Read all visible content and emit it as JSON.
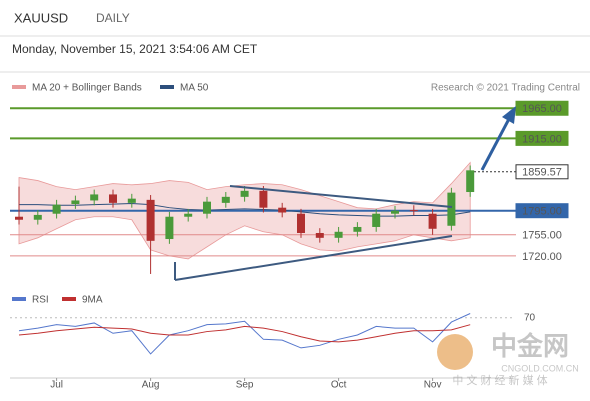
{
  "header": {
    "symbol": "XAUUSD",
    "timeframe": "DAILY",
    "timestamp": "Monday, November 15, 2021 3:54:06 AM CET"
  },
  "watermark": {
    "brand": "中金网",
    "tagline": "中 文 财 经 新 媒 体",
    "site": "CNGOLD.COM.CN"
  },
  "chart_data": [
    {
      "type": "candlestick",
      "credit": "Research © 2021 Trading Central",
      "up_color": "#4a9a3a",
      "down_color": "#b03030",
      "open": [
        1785,
        1780,
        1790,
        1806,
        1812,
        1822,
        1808,
        1813,
        1748,
        1785,
        1790,
        1808,
        1818,
        1828,
        1800,
        1790,
        1758,
        1750,
        1760,
        1768,
        1790,
        1796,
        1790,
        1770,
        1826
      ],
      "high": [
        1835,
        1796,
        1813,
        1820,
        1830,
        1830,
        1823,
        1821,
        1793,
        1798,
        1818,
        1826,
        1836,
        1836,
        1808,
        1798,
        1766,
        1768,
        1776,
        1798,
        1803,
        1804,
        1798,
        1833,
        1870
      ],
      "low": [
        1772,
        1772,
        1782,
        1798,
        1804,
        1800,
        1800,
        1690,
        1740,
        1777,
        1782,
        1800,
        1810,
        1792,
        1784,
        1750,
        1742,
        1742,
        1752,
        1760,
        1782,
        1787,
        1755,
        1762,
        1818
      ],
      "close": [
        1780,
        1788,
        1805,
        1812,
        1822,
        1808,
        1815,
        1745,
        1785,
        1790,
        1810,
        1818,
        1828,
        1800,
        1792,
        1758,
        1750,
        1760,
        1768,
        1790,
        1795,
        1795,
        1765,
        1825,
        1862
      ],
      "series": [
        {
          "name": "MA 20 + Bollinger Bands",
          "color": "#e89a9a",
          "upper": [
            1850,
            1845,
            1835,
            1830,
            1835,
            1840,
            1838,
            1840,
            1845,
            1842,
            1830,
            1835,
            1838,
            1840,
            1838,
            1830,
            1820,
            1810,
            1800,
            1798,
            1805,
            1810,
            1808,
            1840,
            1875
          ],
          "lower": [
            1740,
            1750,
            1765,
            1780,
            1785,
            1785,
            1780,
            1730,
            1720,
            1715,
            1735,
            1755,
            1770,
            1760,
            1755,
            1740,
            1730,
            1728,
            1735,
            1740,
            1745,
            1755,
            1750,
            1745,
            1750
          ]
        },
        {
          "name": "MA 50",
          "color": "#2d4f7c",
          "values": [
            1805,
            1805,
            1804,
            1804,
            1805,
            1806,
            1807,
            1805,
            1800,
            1797,
            1796,
            1797,
            1798,
            1797,
            1796,
            1793,
            1790,
            1788,
            1787,
            1786,
            1786,
            1787,
            1787,
            1788,
            1793
          ]
        }
      ],
      "levels": {
        "values": [
          1965,
          1915,
          1859.57,
          1795,
          1755,
          1720
        ],
        "value_labels": [
          "1965.00",
          "1915.00",
          "1859.57",
          "1795.00",
          "1755.00",
          "1720.00"
        ],
        "colors": [
          "#5a9a2a",
          "#5a9a2a",
          "#333333",
          "#3366aa",
          "#e08a8a",
          "#e08a8a"
        ],
        "label_styles": [
          "box",
          "box",
          "outline",
          "box",
          "plain",
          "plain"
        ]
      },
      "ylim": [
        1680,
        1987
      ]
    },
    {
      "type": "line",
      "categories": [
        null,
        null,
        "Jul",
        null,
        null,
        null,
        null,
        "Aug",
        null,
        null,
        null,
        null,
        "Sep",
        null,
        null,
        null,
        null,
        "Oct",
        null,
        null,
        null,
        null,
        "Nov",
        null,
        null
      ],
      "series": [
        {
          "name": "RSI",
          "color": "#5577cc",
          "values": [
            55,
            58,
            62,
            60,
            64,
            52,
            55,
            28,
            50,
            55,
            62,
            63,
            66,
            45,
            44,
            35,
            38,
            45,
            50,
            60,
            58,
            58,
            42,
            65,
            75
          ]
        },
        {
          "name": "9MA",
          "color": "#c03030",
          "values": [
            50,
            52,
            55,
            57,
            59,
            58,
            57,
            52,
            50,
            50,
            54,
            56,
            60,
            58,
            54,
            48,
            43,
            42,
            44,
            48,
            52,
            55,
            55,
            56,
            62
          ]
        }
      ],
      "ylim": [
        0,
        100
      ],
      "yticks": [
        70
      ]
    }
  ]
}
